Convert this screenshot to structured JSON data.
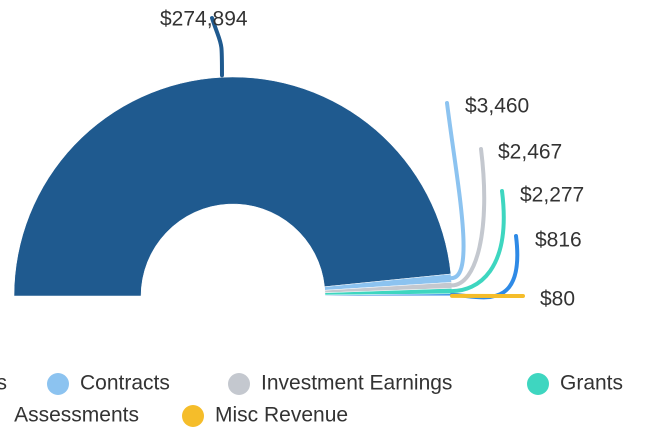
{
  "chart_data": {
    "type": "semi-donut",
    "categories": [
      "s",
      "Contracts",
      "Investment Earnings",
      "Grants",
      "Assessments",
      "Misc Revenue"
    ],
    "values": [
      274894,
      3460,
      2467,
      2277,
      816,
      80
    ],
    "value_labels": [
      "$274,894",
      "$3,460",
      "$2,467",
      "$2,277",
      "$816",
      "$80"
    ],
    "colors": [
      "#1f5a8f",
      "#8cc3f0",
      "#c4c8cf",
      "#3ed6c0",
      "#2e8ae6",
      "#f5bd2a"
    ]
  }
}
